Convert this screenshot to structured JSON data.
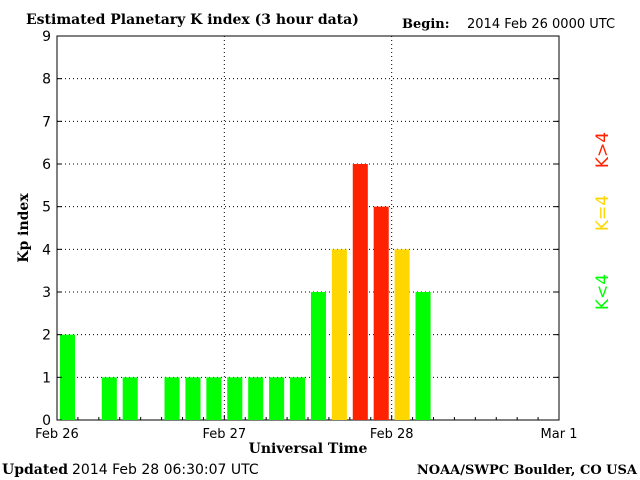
{
  "header": {
    "title": "Estimated Planetary K index (3 hour data)",
    "begin_label": "Begin:",
    "begin_value": "2014 Feb 26 0000 UTC"
  },
  "footer": {
    "updated_label": "Updated",
    "updated_value": "2014 Feb 28 06:30:07 UTC",
    "credit": "NOAA/SWPC Boulder, CO USA"
  },
  "legend": {
    "low": "K<4",
    "eq": "K=4",
    "high": "K>4"
  },
  "colors": {
    "low": "#00ff00",
    "eq": "#ffd700",
    "high": "#ff2200",
    "axis": "#000000",
    "grid": "#000000"
  },
  "chart_data": {
    "type": "bar",
    "title": "Estimated Planetary K index (3 hour data)",
    "xlabel": "Universal Time",
    "ylabel": "Kp index",
    "ylim": [
      0,
      9
    ],
    "yticks": [
      "0",
      "1",
      "2",
      "3",
      "4",
      "5",
      "6",
      "7",
      "8",
      "9"
    ],
    "x_tick_labels": [
      "Feb 26",
      "Feb 27",
      "Feb 28",
      "Mar 1"
    ],
    "grid": true,
    "slots_per_day": 8,
    "days": 3,
    "x": [
      "Feb 26 00-03",
      "Feb 26 03-06",
      "Feb 26 06-09",
      "Feb 26 09-12",
      "Feb 26 12-15",
      "Feb 26 15-18",
      "Feb 26 18-21",
      "Feb 26 21-24",
      "Feb 27 00-03",
      "Feb 27 03-06",
      "Feb 27 06-09",
      "Feb 27 09-12",
      "Feb 27 12-15",
      "Feb 27 15-18",
      "Feb 27 18-21",
      "Feb 27 21-24",
      "Feb 28 00-03",
      "Feb 28 03-06"
    ],
    "values": [
      2,
      0,
      1,
      1,
      0,
      1,
      1,
      1,
      1,
      1,
      1,
      1,
      3,
      4,
      6,
      5,
      4,
      3
    ],
    "legend_placement": "right"
  }
}
